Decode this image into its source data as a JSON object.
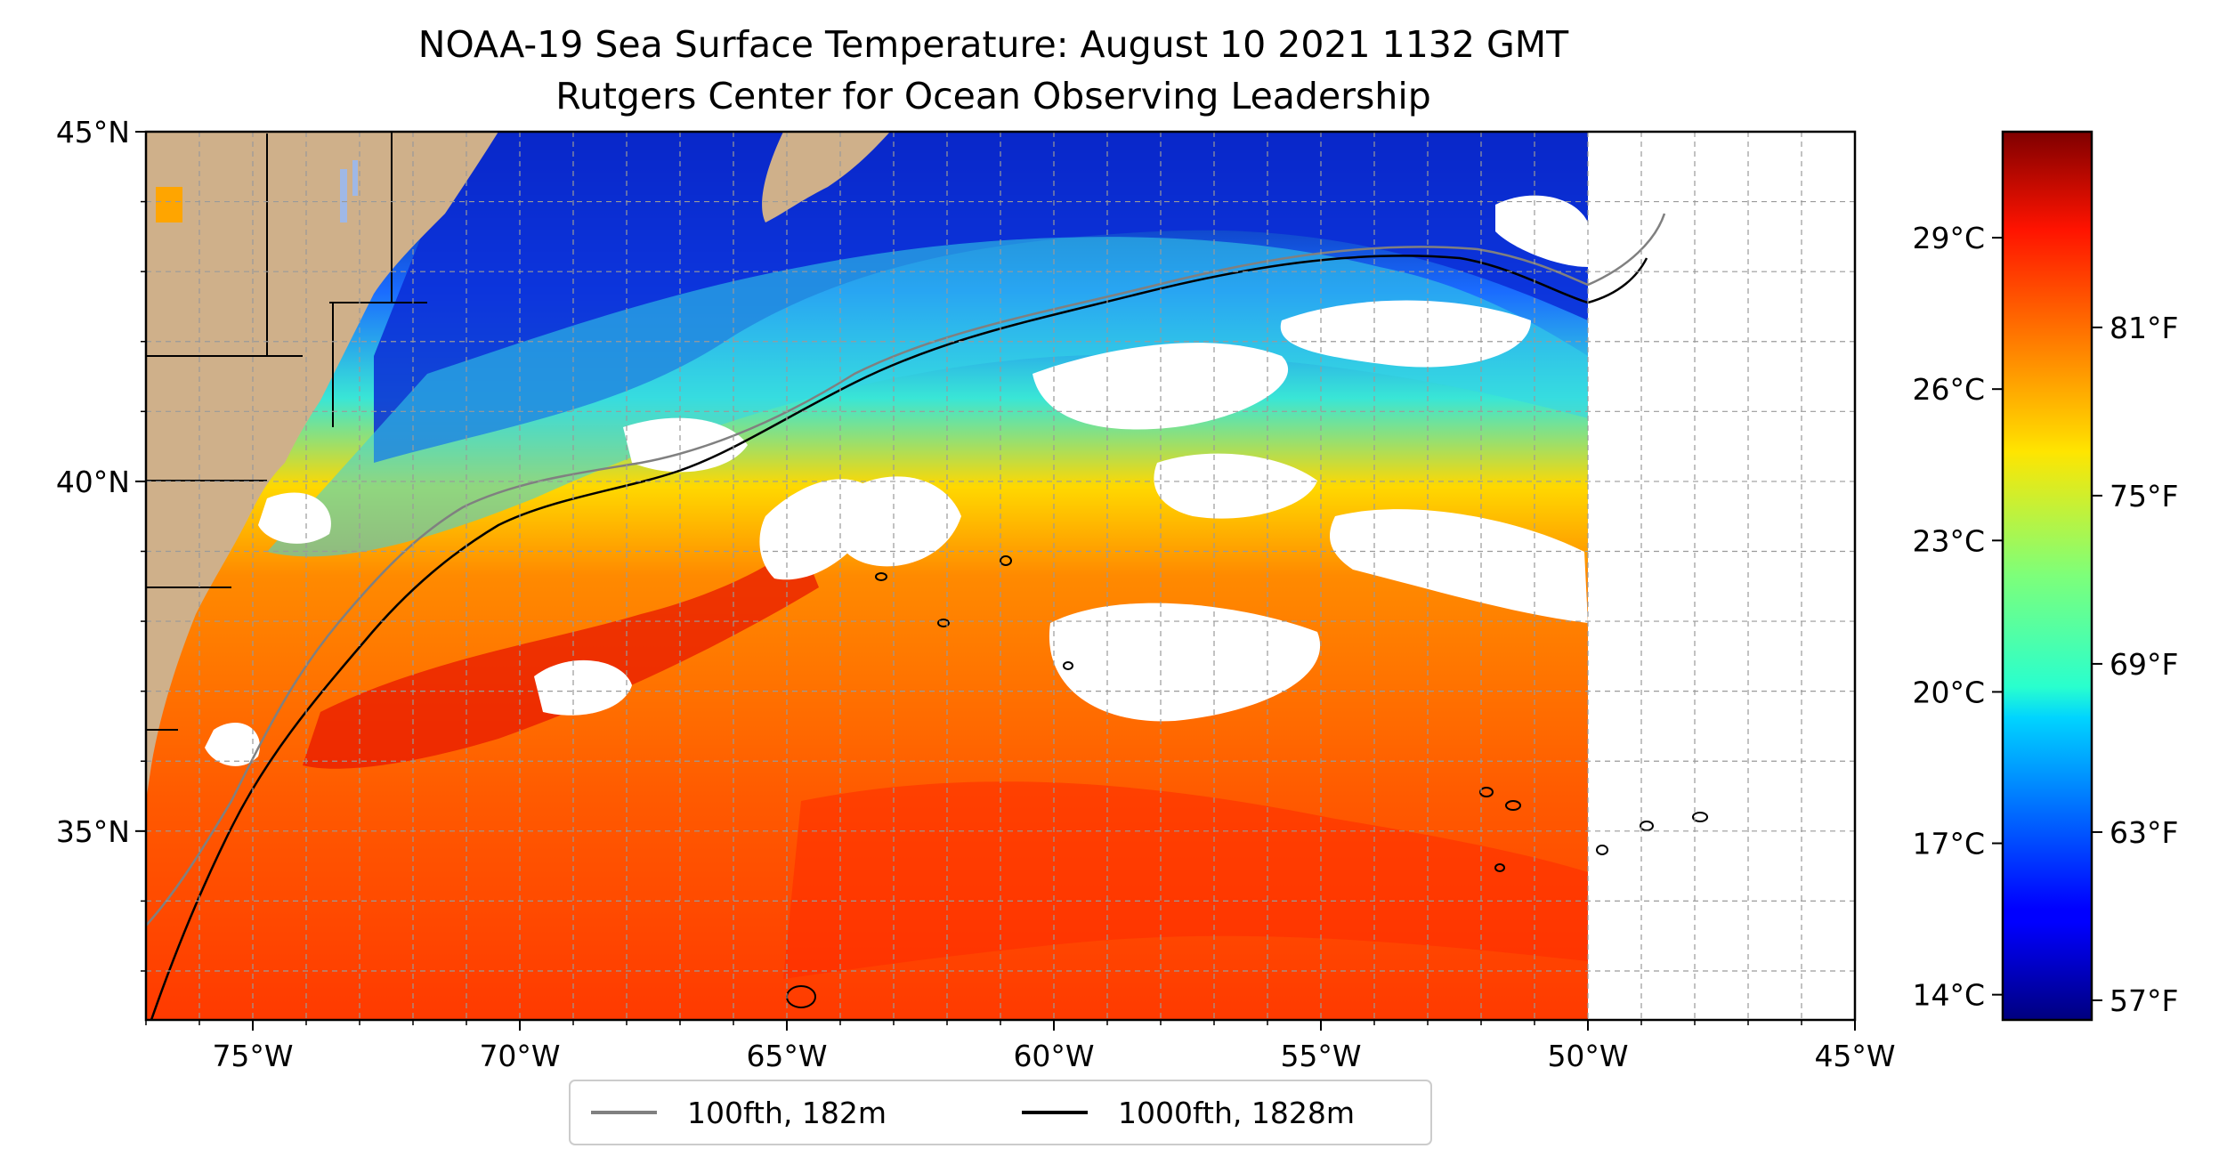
{
  "title": {
    "line1": "NOAA-19 Sea Surface Temperature: August 10 2021 1132 GMT",
    "line2": "Rutgers Center for Ocean Observing Leadership"
  },
  "map": {
    "lon_range": [
      -77,
      -45
    ],
    "lat_range": [
      32.3,
      45
    ],
    "x_ticks": [
      {
        "value": -75,
        "label": "75°W"
      },
      {
        "value": -70,
        "label": "70°W"
      },
      {
        "value": -65,
        "label": "65°W"
      },
      {
        "value": -60,
        "label": "60°W"
      },
      {
        "value": -55,
        "label": "55°W"
      },
      {
        "value": -50,
        "label": "50°W"
      },
      {
        "value": -45,
        "label": "45°W"
      }
    ],
    "y_ticks": [
      {
        "value": 45,
        "label": "45°N"
      },
      {
        "value": 40,
        "label": "40°N"
      },
      {
        "value": 35,
        "label": "35°N"
      }
    ],
    "gridlines": true,
    "land_color": "#cfb08a",
    "no_data_color": "#ffffff",
    "data_east_edge_lon": -50
  },
  "colorbar": {
    "colormap": "jet",
    "celsius_ticks": [
      {
        "value": 29,
        "label": "29°C"
      },
      {
        "value": 26,
        "label": "26°C"
      },
      {
        "value": 23,
        "label": "23°C"
      },
      {
        "value": 20,
        "label": "20°C"
      },
      {
        "value": 17,
        "label": "17°C"
      },
      {
        "value": 14,
        "label": "14°C"
      }
    ],
    "fahrenheit_ticks": [
      {
        "value": 81,
        "label": "81°F"
      },
      {
        "value": 75,
        "label": "75°F"
      },
      {
        "value": 69,
        "label": "69°F"
      },
      {
        "value": 63,
        "label": "63°F"
      },
      {
        "value": 57,
        "label": "57°F"
      }
    ],
    "range_c": [
      13.5,
      31.1
    ]
  },
  "legend": {
    "placement": "bottom-center",
    "items": [
      {
        "label": "100fth, 182m",
        "color": "#808080"
      },
      {
        "label": "1000fth, 1828m",
        "color": "#000000"
      }
    ]
  }
}
